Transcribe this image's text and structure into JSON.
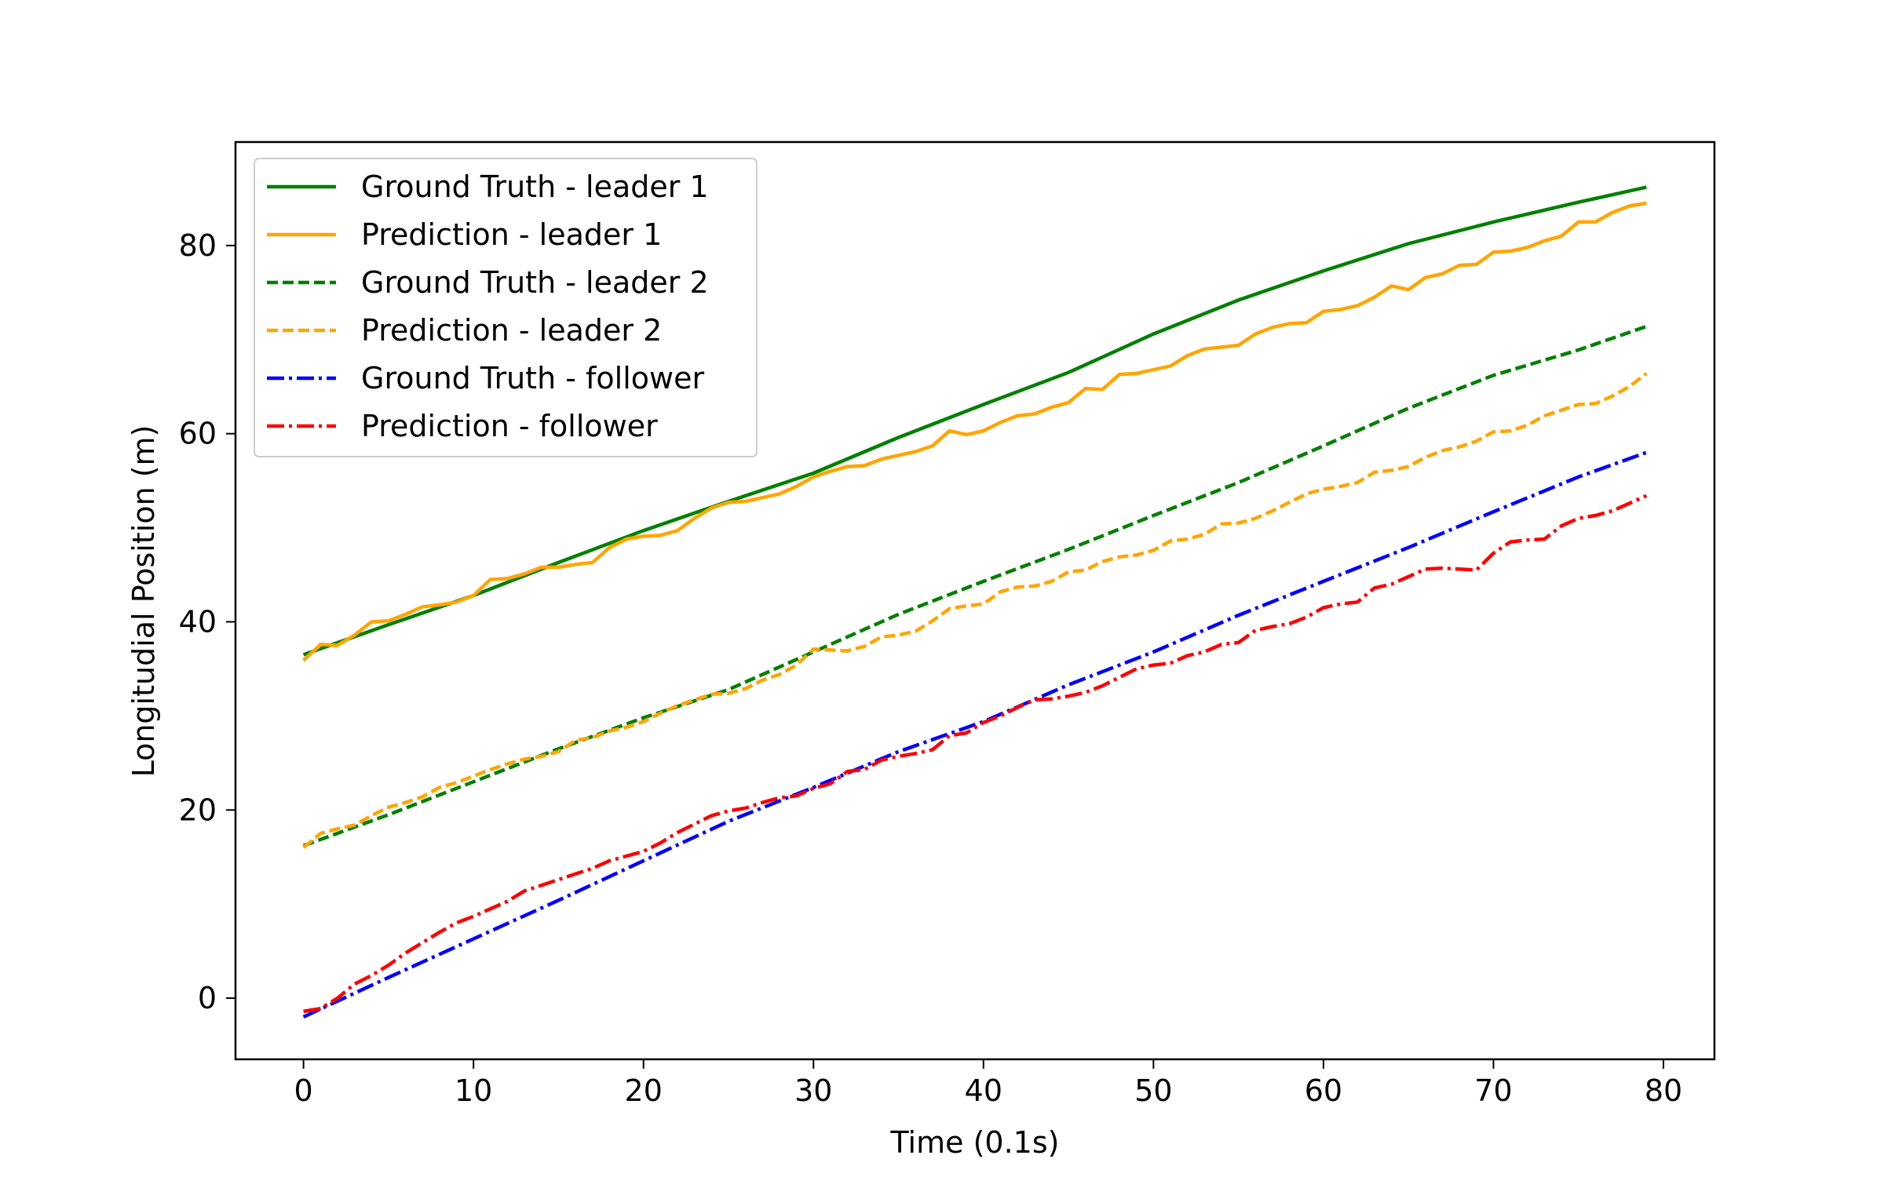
{
  "chart_data": {
    "type": "line",
    "title": "",
    "xlabel": "Time (0.1s)",
    "ylabel": "Longitudial Position (m)",
    "xlim": [
      -4,
      83
    ],
    "ylim": [
      -6.5,
      91
    ],
    "xticks": [
      0,
      10,
      20,
      30,
      40,
      50,
      60,
      70,
      80
    ],
    "yticks": [
      0,
      20,
      40,
      60,
      80
    ],
    "grid": false,
    "legend_position": "upper-left",
    "series": [
      {
        "name": "Ground Truth - leader 1",
        "color": "#008000",
        "style": "solid",
        "x": [
          0,
          5,
          10,
          15,
          20,
          25,
          30,
          35,
          40,
          45,
          50,
          55,
          60,
          65,
          70,
          75,
          79
        ],
        "y": [
          36.5,
          39.7,
          42.8,
          46.3,
          49.7,
          52.8,
          55.8,
          59.6,
          63.1,
          66.5,
          70.6,
          74.2,
          77.3,
          80.2,
          82.5,
          84.6,
          86.2
        ]
      },
      {
        "name": "Prediction - leader 1",
        "color": "#ffa500",
        "style": "solid",
        "x": [
          0,
          1,
          2,
          3,
          4,
          5,
          6,
          7,
          8,
          9,
          10,
          11,
          12,
          13,
          14,
          15,
          16,
          17,
          18,
          19,
          20,
          21,
          22,
          23,
          24,
          25,
          26,
          27,
          28,
          29,
          30,
          31,
          32,
          33,
          34,
          35,
          36,
          37,
          38,
          39,
          40,
          41,
          42,
          43,
          44,
          45,
          46,
          47,
          48,
          49,
          50,
          51,
          52,
          53,
          54,
          55,
          56,
          57,
          58,
          59,
          60,
          61,
          62,
          63,
          64,
          65,
          66,
          67,
          68,
          69,
          70,
          71,
          72,
          73,
          74,
          75,
          76,
          77,
          78,
          79
        ],
        "y": [
          35.9,
          37.6,
          37.5,
          38.6,
          40.0,
          40.1,
          40.8,
          41.6,
          41.8,
          42.1,
          42.8,
          44.5,
          44.6,
          45.1,
          45.8,
          45.8,
          46.1,
          46.3,
          47.9,
          48.8,
          49.1,
          49.2,
          49.7,
          51.0,
          52.1,
          52.7,
          52.8,
          53.2,
          53.6,
          54.4,
          55.4,
          56.0,
          56.5,
          56.6,
          57.3,
          57.7,
          58.1,
          58.7,
          60.3,
          59.9,
          60.3,
          61.2,
          61.9,
          62.1,
          62.8,
          63.3,
          64.8,
          64.7,
          66.3,
          66.4,
          66.8,
          67.2,
          68.3,
          69.0,
          69.2,
          69.4,
          70.6,
          71.3,
          71.7,
          71.8,
          73.0,
          73.2,
          73.6,
          74.5,
          75.7,
          75.3,
          76.6,
          77.0,
          77.9,
          78.0,
          79.3,
          79.4,
          79.8,
          80.5,
          81.0,
          82.5,
          82.5,
          83.5,
          84.2,
          84.5
        ]
      },
      {
        "name": "Ground Truth - leader 2",
        "color": "#008000",
        "style": "dashed",
        "x": [
          0,
          5,
          10,
          15,
          20,
          25,
          30,
          35,
          40,
          45,
          50,
          55,
          60,
          65,
          70,
          75,
          79
        ],
        "y": [
          16.2,
          19.5,
          23.0,
          26.5,
          29.8,
          32.8,
          36.8,
          40.8,
          44.3,
          47.7,
          51.3,
          54.8,
          58.7,
          62.7,
          66.2,
          68.9,
          71.4
        ]
      },
      {
        "name": "Prediction - leader 2",
        "color": "#ffa500",
        "style": "dashed",
        "x": [
          0,
          1,
          2,
          3,
          4,
          5,
          6,
          7,
          8,
          9,
          10,
          11,
          12,
          13,
          14,
          15,
          16,
          17,
          18,
          19,
          20,
          21,
          22,
          23,
          24,
          25,
          26,
          27,
          28,
          29,
          30,
          31,
          32,
          33,
          34,
          35,
          36,
          37,
          38,
          39,
          40,
          41,
          42,
          43,
          44,
          45,
          46,
          47,
          48,
          49,
          50,
          51,
          52,
          53,
          54,
          55,
          56,
          57,
          58,
          59,
          60,
          61,
          62,
          63,
          64,
          65,
          66,
          67,
          68,
          69,
          70,
          71,
          72,
          73,
          74,
          75,
          76,
          77,
          78,
          79
        ],
        "y": [
          16.0,
          17.5,
          18.0,
          18.4,
          19.4,
          20.3,
          20.8,
          21.4,
          22.4,
          22.9,
          23.6,
          24.3,
          24.9,
          25.4,
          25.7,
          26.2,
          27.4,
          27.7,
          28.4,
          28.8,
          29.4,
          30.3,
          31.1,
          31.7,
          32.3,
          32.4,
          32.9,
          33.8,
          34.4,
          35.4,
          37.1,
          37.0,
          36.9,
          37.4,
          38.4,
          38.6,
          39.0,
          40.1,
          41.4,
          41.7,
          41.9,
          43.2,
          43.7,
          43.8,
          44.3,
          45.3,
          45.5,
          46.4,
          46.9,
          47.1,
          47.6,
          48.6,
          48.8,
          49.3,
          50.4,
          50.5,
          51.0,
          51.8,
          52.7,
          53.6,
          54.1,
          54.4,
          54.8,
          55.9,
          56.1,
          56.5,
          57.5,
          58.2,
          58.6,
          59.2,
          60.2,
          60.3,
          60.9,
          61.9,
          62.5,
          63.1,
          63.2,
          64.0,
          65.0,
          66.4
        ]
      },
      {
        "name": "Ground Truth - follower",
        "color": "#0000ff",
        "style": "dashdot",
        "x": [
          0,
          5,
          10,
          15,
          20,
          25,
          30,
          35,
          40,
          45,
          50,
          55,
          60,
          65,
          70,
          75,
          79
        ],
        "y": [
          -2.0,
          2.2,
          6.3,
          10.4,
          14.6,
          18.8,
          22.4,
          26.2,
          29.4,
          33.3,
          36.8,
          40.7,
          44.3,
          47.9,
          51.7,
          55.4,
          58.0
        ]
      },
      {
        "name": "Prediction - follower",
        "color": "#ff0000",
        "style": "dashdot",
        "x": [
          0,
          1,
          2,
          3,
          4,
          5,
          6,
          7,
          8,
          9,
          10,
          11,
          12,
          13,
          14,
          15,
          16,
          17,
          18,
          19,
          20,
          21,
          22,
          23,
          24,
          25,
          26,
          27,
          28,
          29,
          30,
          31,
          32,
          33,
          34,
          35,
          36,
          37,
          38,
          39,
          40,
          41,
          42,
          43,
          44,
          45,
          46,
          47,
          48,
          49,
          50,
          51,
          52,
          53,
          54,
          55,
          56,
          57,
          58,
          59,
          60,
          61,
          62,
          63,
          64,
          65,
          66,
          67,
          68,
          69,
          70,
          71,
          72,
          73,
          74,
          75,
          76,
          77,
          78,
          79
        ],
        "y": [
          -1.4,
          -1.1,
          0.0,
          1.5,
          2.4,
          3.5,
          4.8,
          5.9,
          7.0,
          8.0,
          8.7,
          9.5,
          10.3,
          11.4,
          12.0,
          12.6,
          13.2,
          13.8,
          14.6,
          15.1,
          15.6,
          16.5,
          17.6,
          18.5,
          19.4,
          19.9,
          20.2,
          20.8,
          21.3,
          21.5,
          22.3,
          22.8,
          24.1,
          24.3,
          25.3,
          25.7,
          26.0,
          26.4,
          27.9,
          28.2,
          29.3,
          30.0,
          30.9,
          31.7,
          31.8,
          32.1,
          32.5,
          33.2,
          34.1,
          35.0,
          35.4,
          35.6,
          36.4,
          36.8,
          37.6,
          37.8,
          39.1,
          39.5,
          39.8,
          40.5,
          41.5,
          41.9,
          42.1,
          43.6,
          44.0,
          44.8,
          45.6,
          45.7,
          45.6,
          45.5,
          47.3,
          48.5,
          48.7,
          48.8,
          50.2,
          51.0,
          51.3,
          51.8,
          52.6,
          53.4
        ]
      }
    ]
  }
}
